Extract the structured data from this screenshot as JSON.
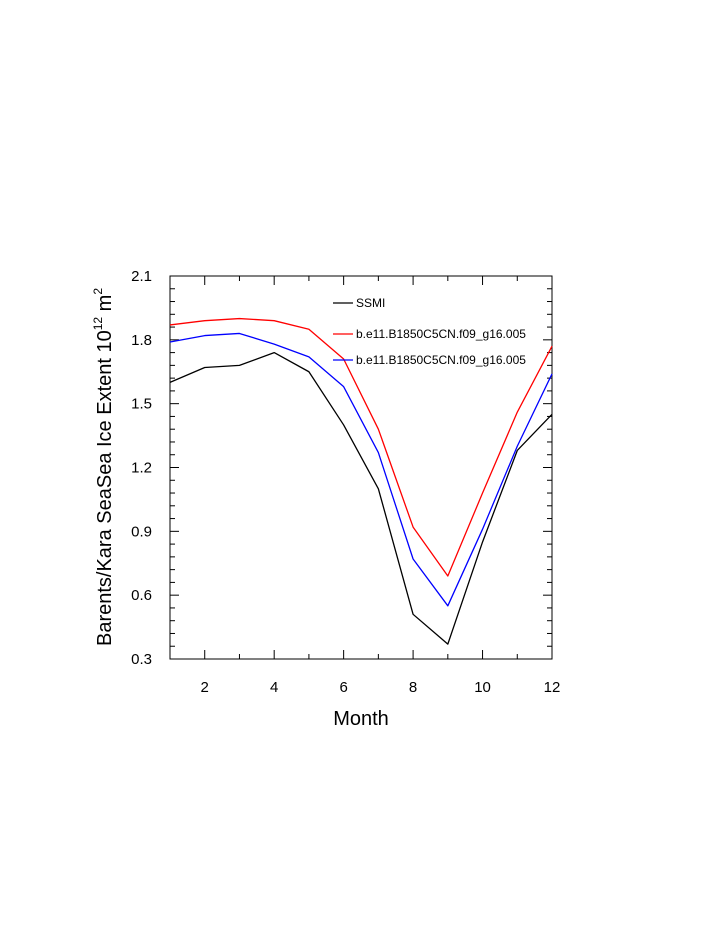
{
  "chart_data": {
    "type": "line",
    "xlabel": "Month",
    "ylabel": "Barents/Kara SeaSea Ice Extent 10",
    "ylabel_exp": "12",
    "ylabel_unit": " m",
    "ylabel_unit_exp": "2",
    "xlim": [
      1,
      12
    ],
    "ylim": [
      0.3,
      2.1
    ],
    "x_ticks": [
      2,
      4,
      6,
      8,
      10,
      12
    ],
    "x_tick_labels": [
      "2",
      "4",
      "6",
      "8",
      "10",
      "12"
    ],
    "y_ticks": [
      0.3,
      0.6,
      0.9,
      1.2,
      1.5,
      1.8,
      2.1
    ],
    "y_tick_labels": [
      "0.3",
      "0.6",
      "0.9",
      "1.2",
      "1.5",
      "1.8",
      "2.1"
    ],
    "grid": false,
    "legend_position": "top-right",
    "x": [
      1,
      2,
      3,
      4,
      5,
      6,
      7,
      8,
      9,
      10,
      11,
      12
    ],
    "series": [
      {
        "name": "SSMI",
        "color": "#000000",
        "values": [
          1.6,
          1.67,
          1.68,
          1.74,
          1.65,
          1.4,
          1.1,
          0.51,
          0.37,
          0.85,
          1.28,
          1.45
        ]
      },
      {
        "name": "b.e11.B1850C5CN.f09_g16.005",
        "color": "#ff0000",
        "values": [
          1.87,
          1.89,
          1.9,
          1.89,
          1.85,
          1.71,
          1.38,
          0.92,
          0.69,
          1.08,
          1.46,
          1.77
        ]
      },
      {
        "name": "b.e11.B1850C5CN.f09_g16.005",
        "color": "#0000ff",
        "values": [
          1.79,
          1.82,
          1.83,
          1.78,
          1.72,
          1.58,
          1.27,
          0.77,
          0.55,
          0.91,
          1.3,
          1.64
        ]
      }
    ]
  }
}
